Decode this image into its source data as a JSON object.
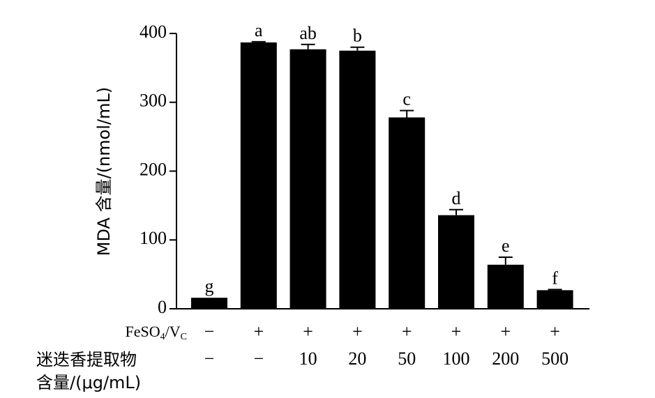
{
  "chart_data": {
    "type": "bar",
    "ylabel": "MDA 含量/(nmol/mL)",
    "values": [
      16,
      387,
      377,
      375,
      278,
      136,
      64,
      27
    ],
    "errors": [
      0,
      1,
      7,
      5,
      10,
      8,
      11,
      1
    ],
    "annotations": [
      "g",
      "a",
      "ab",
      "b",
      "c",
      "d",
      "e",
      "f"
    ],
    "color": "#000000",
    "ylim": [
      0,
      400
    ],
    "yticks": [
      0,
      100,
      200,
      300,
      400
    ],
    "treatments": [
      {
        "label_parts": [
          "FeSO",
          "4",
          "/V",
          "C"
        ],
        "values": [
          "−",
          "+",
          "+",
          "+",
          "+",
          "+",
          "+",
          "+"
        ]
      },
      {
        "label_lines": [
          "迷迭香提取物",
          "含量/(μg/mL)"
        ],
        "values": [
          "−",
          "−",
          "10",
          "20",
          "50",
          "100",
          "200",
          "500"
        ]
      }
    ]
  }
}
